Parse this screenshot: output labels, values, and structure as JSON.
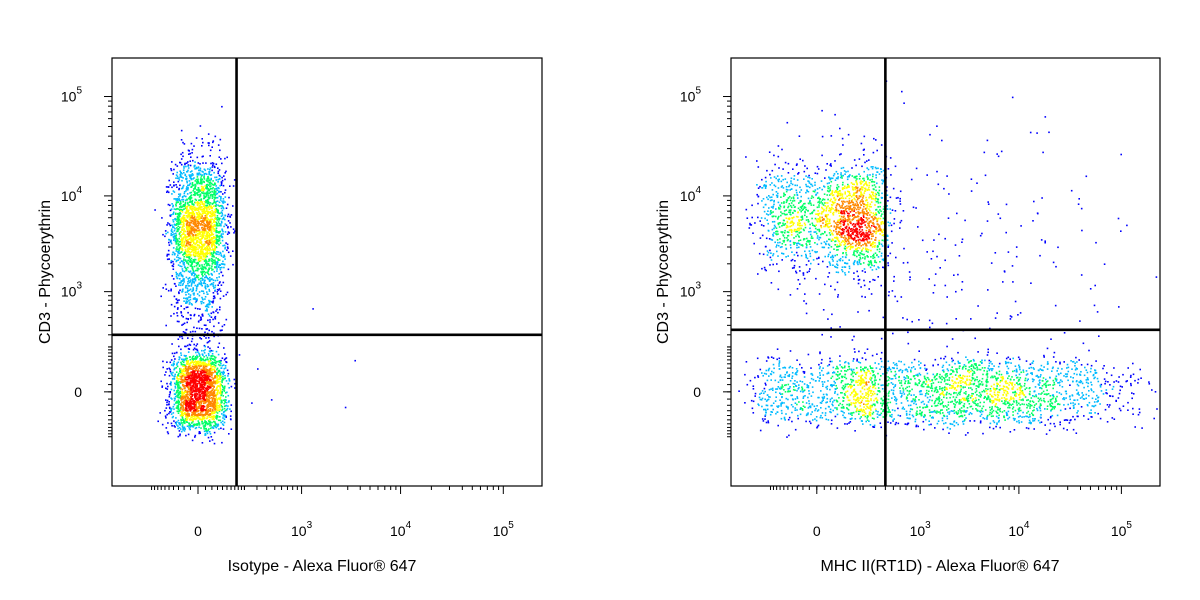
{
  "chart_data": [
    {
      "type": "scatter",
      "xlabel": "Isotype - Alexa Fluor® 647",
      "ylabel": "CD3 - Phycoerythrin",
      "x_ticks": [
        {
          "base": "0",
          "exp": "",
          "value": 0
        },
        {
          "base": "10",
          "exp": "3",
          "value": 1000
        },
        {
          "base": "10",
          "exp": "4",
          "value": 10000
        },
        {
          "base": "10",
          "exp": "5",
          "value": 100000
        }
      ],
      "y_ticks": [
        {
          "base": "0",
          "exp": "",
          "value": 0
        },
        {
          "base": "10",
          "exp": "3",
          "value": 1000
        },
        {
          "base": "10",
          "exp": "4",
          "value": 10000
        },
        {
          "base": "10",
          "exp": "5",
          "value": 100000
        }
      ],
      "quadrant_gate": {
        "x": 150,
        "y": 300
      },
      "populations": [
        {
          "name": "",
          "x_center": 0,
          "x_spread": 45,
          "y_center": 5000,
          "y_spread": 0.22,
          "count": 2200
        },
        {
          "name": "",
          "x_center": 0,
          "x_spread": 45,
          "y_center": 0,
          "y_spread": 70,
          "count": 2100
        },
        {
          "name": "",
          "x_center": 0,
          "x_spread": 40,
          "y_center": 800,
          "y_spread": 0.25,
          "count": 300
        }
      ],
      "outliers": [
        [
          1300,
          650
        ],
        [
          3500,
          120
        ],
        [
          300,
          80
        ],
        [
          250,
          -30
        ],
        [
          450,
          -20
        ],
        [
          2800,
          -45
        ]
      ],
      "colors": [
        "#0000ff",
        "#00bbff",
        "#00ff66",
        "#ffff00",
        "#ff8800",
        "#ff0000"
      ]
    },
    {
      "type": "scatter",
      "xlabel": "MHC II(RT1D) - Alexa Fluor® 647",
      "ylabel": "CD3 - Phycoerythrin",
      "x_ticks": [
        {
          "base": "0",
          "exp": "",
          "value": 0
        },
        {
          "base": "10",
          "exp": "3",
          "value": 1000
        },
        {
          "base": "10",
          "exp": "4",
          "value": 10000
        },
        {
          "base": "10",
          "exp": "5",
          "value": 100000
        }
      ],
      "y_ticks": [
        {
          "base": "0",
          "exp": "",
          "value": 0
        },
        {
          "base": "10",
          "exp": "3",
          "value": 1000
        },
        {
          "base": "10",
          "exp": "4",
          "value": 10000
        },
        {
          "base": "10",
          "exp": "5",
          "value": 100000
        }
      ],
      "quadrant_gate": {
        "x": 400,
        "y": 350
      },
      "populations": [
        {
          "name": "",
          "x_center": 80,
          "x_spread": 160,
          "y_center": 6000,
          "y_spread": 0.18,
          "count": 1900
        },
        {
          "name": "",
          "x_center": 60,
          "x_spread": 180,
          "y_center": 0,
          "y_spread": 60,
          "count": 800
        },
        {
          "name": "",
          "x_center": 5000,
          "x_spread": 0.45,
          "y_center": 0,
          "y_spread": 60,
          "count": 1700
        },
        {
          "name": "",
          "x_center": 1500,
          "x_spread": 0.6,
          "y_center": 2000,
          "y_spread": 0.5,
          "count": 250
        }
      ],
      "outliers": [],
      "colors": [
        "#0000ff",
        "#00bbff",
        "#00ff66",
        "#ffff00",
        "#ff8800",
        "#ff0000"
      ]
    }
  ]
}
